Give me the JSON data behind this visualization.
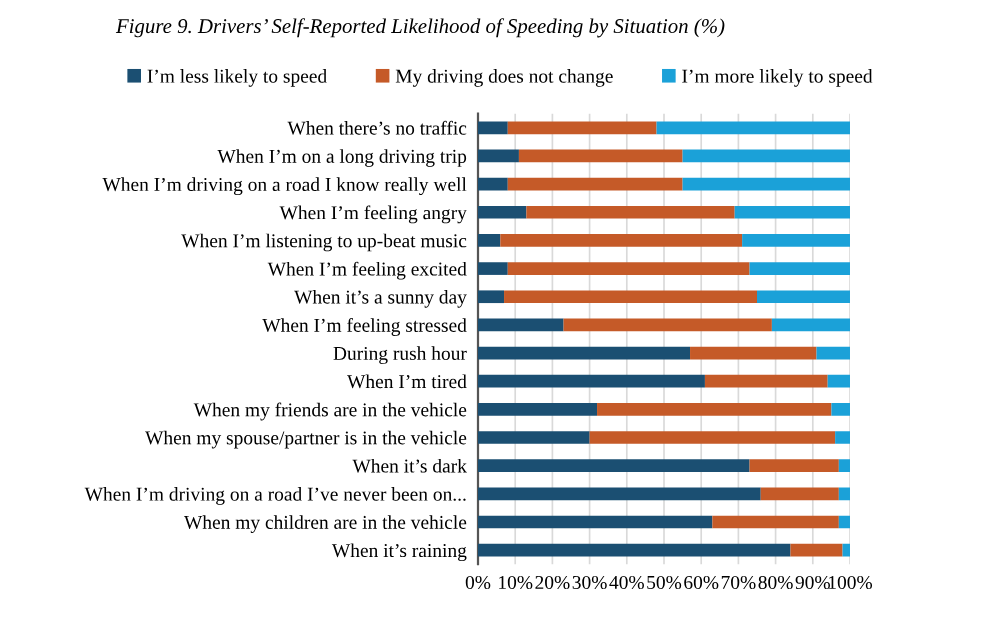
{
  "chart_data": {
    "type": "bar",
    "orientation": "horizontal",
    "stacked": true,
    "title": "Figure 9. Drivers’ Self-Reported Likelihood of Speeding by Situation (%)",
    "categories": [
      "When there’s no traffic",
      "When I’m on a long driving trip",
      "When I’m driving on a road I know really well",
      "When I’m feeling angry",
      "When I’m listening to up-beat music",
      "When I’m feeling excited",
      "When it’s a sunny day",
      "When I’m feeling stressed",
      "During rush hour",
      "When I’m tired",
      "When my friends are in the vehicle",
      "When my spouse/partner is in the vehicle",
      "When it’s dark",
      "When I’m driving on a road I’ve never been on...",
      "When my children are in the vehicle",
      "When it’s raining"
    ],
    "series": [
      {
        "name": "I’m less likely to speed",
        "color": "#1b4f72",
        "values": [
          8,
          11,
          8,
          13,
          6,
          8,
          7,
          23,
          57,
          61,
          32,
          30,
          73,
          76,
          63,
          84
        ]
      },
      {
        "name": "My driving does not change",
        "color": "#c55a28",
        "values": [
          40,
          44,
          47,
          56,
          65,
          65,
          68,
          56,
          34,
          33,
          63,
          66,
          24,
          21,
          34,
          14
        ]
      },
      {
        "name": "I’m more likely to speed",
        "color": "#1ba1d8",
        "values": [
          52,
          45,
          45,
          31,
          29,
          27,
          25,
          21,
          9,
          6,
          5,
          4,
          3,
          3,
          3,
          2
        ]
      }
    ],
    "xlim": [
      0,
      100
    ],
    "xticks": [
      {
        "value": 0,
        "label": "0%"
      },
      {
        "value": 10,
        "label": "10%"
      },
      {
        "value": 20,
        "label": "20%"
      },
      {
        "value": 30,
        "label": "30%"
      },
      {
        "value": 40,
        "label": "40%"
      },
      {
        "value": 50,
        "label": "50%"
      },
      {
        "value": 60,
        "label": "60%"
      },
      {
        "value": 70,
        "label": "70%"
      },
      {
        "value": 80,
        "label": "80%"
      },
      {
        "value": 90,
        "label": "90%"
      },
      {
        "value": 100,
        "label": "100%"
      }
    ],
    "grid": "x",
    "legend": "top"
  }
}
